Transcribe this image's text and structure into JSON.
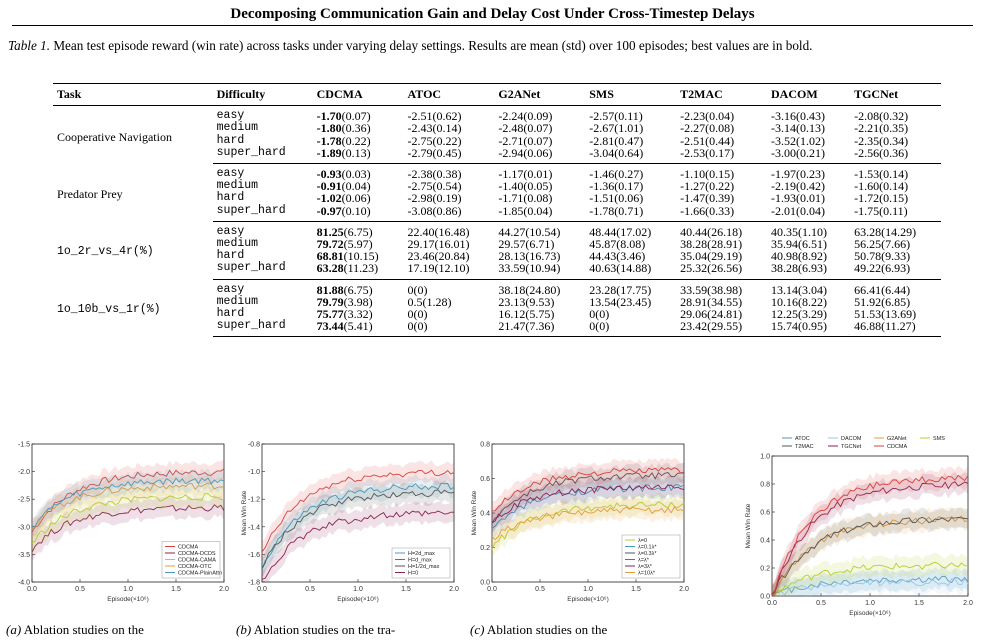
{
  "header": {
    "title": "Decomposing Communication Gain and Delay Cost Under Cross-Timestep Delays"
  },
  "caption": {
    "label": "Table 1.",
    "text": " Mean test episode reward (win rate) across tasks under varying delay settings. Results are mean (std) over 100 episodes; best values are in bold."
  },
  "table": {
    "columns": [
      "Task",
      "Difficulty",
      "CDCMA",
      "ATOC",
      "G2ANet",
      "SMS",
      "T2MAC",
      "DACOM",
      "TGCNet"
    ],
    "groups": [
      {
        "task": "Cooperative Navigation",
        "mono": false,
        "rows": [
          {
            "difficulty": "easy",
            "cells": [
              [
                "-1.70",
                "(0.07)"
              ],
              [
                "-2.51",
                "(0.62)"
              ],
              [
                "-2.24",
                "(0.09)"
              ],
              [
                "-2.57",
                "(0.11)"
              ],
              [
                "-2.23",
                "(0.04)"
              ],
              [
                "-3.16",
                "(0.43)"
              ],
              [
                "-2.08",
                "(0.32)"
              ]
            ]
          },
          {
            "difficulty": "medium",
            "cells": [
              [
                "-1.80",
                "(0.36)"
              ],
              [
                "-2.43",
                "(0.14)"
              ],
              [
                "-2.48",
                "(0.07)"
              ],
              [
                "-2.67",
                "(1.01)"
              ],
              [
                "-2.27",
                "(0.08)"
              ],
              [
                "-3.14",
                "(0.13)"
              ],
              [
                "-2.21",
                "(0.35)"
              ]
            ]
          },
          {
            "difficulty": "hard",
            "cells": [
              [
                "-1.78",
                "(0.22)"
              ],
              [
                "-2.75",
                "(0.22)"
              ],
              [
                "-2.71",
                "(0.07)"
              ],
              [
                "-2.81",
                "(0.47)"
              ],
              [
                "-2.51",
                "(0.44)"
              ],
              [
                "-3.52",
                "(1.02)"
              ],
              [
                "-2.35",
                "(0.34)"
              ]
            ]
          },
          {
            "difficulty": "super_hard",
            "cells": [
              [
                "-1.89",
                "(0.13)"
              ],
              [
                "-2.79",
                "(0.45)"
              ],
              [
                "-2.94",
                "(0.06)"
              ],
              [
                "-3.04",
                "(0.64)"
              ],
              [
                "-2.53",
                "(0.17)"
              ],
              [
                "-3.00",
                "(0.21)"
              ],
              [
                "-2.56",
                "(0.36)"
              ]
            ]
          }
        ]
      },
      {
        "task": "Predator Prey",
        "mono": false,
        "rows": [
          {
            "difficulty": "easy",
            "cells": [
              [
                "-0.93",
                "(0.03)"
              ],
              [
                "-2.38",
                "(0.38)"
              ],
              [
                "-1.17",
                "(0.01)"
              ],
              [
                "-1.46",
                "(0.27)"
              ],
              [
                "-1.10",
                "(0.15)"
              ],
              [
                "-1.97",
                "(0.23)"
              ],
              [
                "-1.53",
                "(0.14)"
              ]
            ]
          },
          {
            "difficulty": "medium",
            "cells": [
              [
                "-0.91",
                "(0.04)"
              ],
              [
                "-2.75",
                "(0.54)"
              ],
              [
                "-1.40",
                "(0.05)"
              ],
              [
                "-1.36",
                "(0.17)"
              ],
              [
                "-1.27",
                "(0.22)"
              ],
              [
                "-2.19",
                "(0.42)"
              ],
              [
                "-1.60",
                "(0.14)"
              ]
            ]
          },
          {
            "difficulty": "hard",
            "cells": [
              [
                "-1.02",
                "(0.06)"
              ],
              [
                "-2.98",
                "(0.19)"
              ],
              [
                "-1.71",
                "(0.08)"
              ],
              [
                "-1.51",
                "(0.06)"
              ],
              [
                "-1.47",
                "(0.39)"
              ],
              [
                "-1.93",
                "(0.01)"
              ],
              [
                "-1.72",
                "(0.15)"
              ]
            ]
          },
          {
            "difficulty": "super_hard",
            "cells": [
              [
                "-0.97",
                "(0.10)"
              ],
              [
                "-3.08",
                "(0.86)"
              ],
              [
                "-1.85",
                "(0.04)"
              ],
              [
                "-1.78",
                "(0.71)"
              ],
              [
                "-1.66",
                "(0.33)"
              ],
              [
                "-2.01",
                "(0.04)"
              ],
              [
                "-1.75",
                "(0.11)"
              ]
            ]
          }
        ]
      },
      {
        "task": "1o_2r_vs_4r(%)",
        "mono": true,
        "rows": [
          {
            "difficulty": "easy",
            "cells": [
              [
                "81.25",
                "(6.75)"
              ],
              [
                "22.40",
                "(16.48)"
              ],
              [
                "44.27",
                "(10.54)"
              ],
              [
                "48.44",
                "(17.02)"
              ],
              [
                "40.44",
                "(26.18)"
              ],
              [
                "40.35",
                "(1.10)"
              ],
              [
                "63.28",
                "(14.29)"
              ]
            ]
          },
          {
            "difficulty": "medium",
            "cells": [
              [
                "79.72",
                "(5.97)"
              ],
              [
                "29.17",
                "(16.01)"
              ],
              [
                "29.57",
                "(6.71)"
              ],
              [
                "45.87",
                "(8.08)"
              ],
              [
                "38.28",
                "(28.91)"
              ],
              [
                "35.94",
                "(6.51)"
              ],
              [
                "56.25",
                "(7.66)"
              ]
            ]
          },
          {
            "difficulty": "hard",
            "cells": [
              [
                "68.81",
                "(10.15)"
              ],
              [
                "23.46",
                "(20.84)"
              ],
              [
                "28.13",
                "(16.73)"
              ],
              [
                "44.43",
                "(3.46)"
              ],
              [
                "35.04",
                "(29.19)"
              ],
              [
                "40.98",
                "(8.92)"
              ],
              [
                "50.78",
                "(9.33)"
              ]
            ]
          },
          {
            "difficulty": "super_hard",
            "cells": [
              [
                "63.28",
                "(11.23)"
              ],
              [
                "17.19",
                "(12.10)"
              ],
              [
                "33.59",
                "(10.94)"
              ],
              [
                "40.63",
                "(14.88)"
              ],
              [
                "25.32",
                "(26.56)"
              ],
              [
                "38.28",
                "(6.93)"
              ],
              [
                "49.22",
                "(6.93)"
              ]
            ]
          }
        ]
      },
      {
        "task": "1o_10b_vs_1r(%)",
        "mono": true,
        "rows": [
          {
            "difficulty": "easy",
            "cells": [
              [
                "81.88",
                "(6.75)"
              ],
              [
                "0",
                "(0)"
              ],
              [
                "38.18",
                "(24.80)"
              ],
              [
                "23.28",
                "(17.75)"
              ],
              [
                "33.59",
                "(38.98)"
              ],
              [
                "13.14",
                "(3.04)"
              ],
              [
                "66.41",
                "(6.44)"
              ]
            ]
          },
          {
            "difficulty": "medium",
            "cells": [
              [
                "79.79",
                "(3.98)"
              ],
              [
                "0.5",
                "(1.28)"
              ],
              [
                "23.13",
                "(9.53)"
              ],
              [
                "13.54",
                "(23.45)"
              ],
              [
                "28.91",
                "(34.55)"
              ],
              [
                "10.16",
                "(8.22)"
              ],
              [
                "51.92",
                "(6.85)"
              ]
            ]
          },
          {
            "difficulty": "hard",
            "cells": [
              [
                "75.77",
                "(3.32)"
              ],
              [
                "0",
                "(0)"
              ],
              [
                "16.12",
                "(5.75)"
              ],
              [
                "0",
                "(0)"
              ],
              [
                "29.06",
                "(24.81)"
              ],
              [
                "12.25",
                "(3.29)"
              ],
              [
                "51.53",
                "(13.69)"
              ]
            ]
          },
          {
            "difficulty": "super_hard",
            "cells": [
              [
                "73.44",
                "(5.41)"
              ],
              [
                "0",
                "(0)"
              ],
              [
                "21.47",
                "(7.36)"
              ],
              [
                "0",
                "(0)"
              ],
              [
                "23.42",
                "(29.55)"
              ],
              [
                "15.74",
                "(0.95)"
              ],
              [
                "46.88",
                "(11.27)"
              ]
            ]
          }
        ]
      }
    ]
  },
  "figures": {
    "chart_data": [
      {
        "type": "line",
        "xlabel": "Episode(×10⁶)",
        "ylabel": "",
        "xlim": [
          0,
          2.0
        ],
        "ylim": [
          -4.0,
          -1.5
        ],
        "xticks": [
          "0.0",
          "0.5",
          "1.0",
          "1.5",
          "2.0"
        ],
        "yticks": [
          "-1.5",
          "-2.0",
          "-2.5",
          "-3.0",
          "-3.5",
          "-4.0"
        ],
        "legend_position": "bottom-right",
        "series": [
          {
            "name": "CDCMA",
            "color": "#d9413d",
            "start": -3.1,
            "end": -2.0
          },
          {
            "name": "CDCMA-DCDS",
            "color": "#8b2252",
            "start": -3.4,
            "end": -2.65
          },
          {
            "name": "CDCMA-CAMA",
            "color": "#b8cc2e",
            "start": -3.3,
            "end": -2.45
          },
          {
            "name": "CDCMA-OTC",
            "color": "#e89a3c",
            "start": -3.0,
            "end": -2.25
          },
          {
            "name": "CDCMA-PlainAttn",
            "color": "#4a9bbf",
            "start": -3.0,
            "end": -2.15
          }
        ]
      },
      {
        "type": "line",
        "xlabel": "Episode(×10⁶)",
        "ylabel": "Mean Win Rate",
        "xlim": [
          0,
          2.0
        ],
        "ylim": [
          -1.8,
          -0.8
        ],
        "xticks": [
          "0.0",
          "0.5",
          "1.0",
          "1.5",
          "2.0"
        ],
        "yticks": [
          "-0.8",
          "-1.0",
          "-1.2",
          "-1.4",
          "-1.6",
          "-1.8"
        ],
        "legend_position": "bottom-right",
        "series": [
          {
            "name": "H=2d_max",
            "color": "#4a9bbf",
            "start": -1.7,
            "end": -1.1
          },
          {
            "name": "H=d_max",
            "color": "#d9413d",
            "start": -1.6,
            "end": -1.0
          },
          {
            "name": "H=1/2d_max",
            "color": "#555555",
            "start": -1.7,
            "end": -1.15
          },
          {
            "name": "H=0",
            "color": "#8b2252",
            "start": -1.8,
            "end": -1.3
          }
        ]
      },
      {
        "type": "line",
        "xlabel": "Episode(×10⁶)",
        "ylabel": "Mean Win Rate",
        "xlim": [
          0,
          2.0
        ],
        "ylim": [
          0.0,
          0.8
        ],
        "xticks": [
          "0.0",
          "0.5",
          "1.0",
          "1.5",
          "2.0"
        ],
        "yticks": [
          "0.8",
          "0.6",
          "0.4",
          "0.2",
          "0.0"
        ],
        "legend_position": "bottom-right",
        "series": [
          {
            "name": "λ=0",
            "color": "#b8cc2e",
            "start": 0.2,
            "end": 0.45
          },
          {
            "name": "λ=0.1λ*",
            "color": "#4a9bbf",
            "start": 0.3,
            "end": 0.55
          },
          {
            "name": "λ=0.3λ*",
            "color": "#555555",
            "start": 0.35,
            "end": 0.62
          },
          {
            "name": "λ=λ*",
            "color": "#d9413d",
            "start": 0.4,
            "end": 0.65
          },
          {
            "name": "λ=3λ*",
            "color": "#8b2252",
            "start": 0.35,
            "end": 0.55
          },
          {
            "name": "λ=10λ*",
            "color": "#e89a3c",
            "start": 0.25,
            "end": 0.42
          }
        ]
      },
      {
        "type": "line",
        "xlabel": "Episode(×10⁶)",
        "ylabel": "Mean Win Rate",
        "xlim": [
          0,
          2.0
        ],
        "ylim": [
          0.0,
          1.0
        ],
        "xticks": [
          "0.0",
          "0.5",
          "1.0",
          "1.5",
          "2.0"
        ],
        "yticks": [
          "1.0",
          "0.8",
          "0.6",
          "0.4",
          "0.2",
          "0.0"
        ],
        "legend_position": "top",
        "series": [
          {
            "name": "ATOC",
            "color": "#4a9bbf",
            "start": 0.0,
            "end": 0.12
          },
          {
            "name": "DACOM",
            "color": "#9fc5e8",
            "start": 0.0,
            "end": 0.1
          },
          {
            "name": "G2ANet",
            "color": "#e89a3c",
            "start": 0.0,
            "end": 0.55
          },
          {
            "name": "SMS",
            "color": "#b8cc2e",
            "start": 0.0,
            "end": 0.22
          },
          {
            "name": "T2MAC",
            "color": "#555555",
            "start": 0.0,
            "end": 0.55
          },
          {
            "name": "TGCNet",
            "color": "#8b2252",
            "start": 0.0,
            "end": 0.8
          },
          {
            "name": "CDCMA",
            "color": "#d9413d",
            "start": 0.0,
            "end": 0.85
          }
        ]
      }
    ]
  },
  "subcaptions": [
    {
      "label": "(a)",
      "text": " Ablation studies on the"
    },
    {
      "label": "(b)",
      "text": " Ablation studies on the tra-"
    },
    {
      "label": "(c)",
      "text": " Ablation studies on the"
    }
  ]
}
